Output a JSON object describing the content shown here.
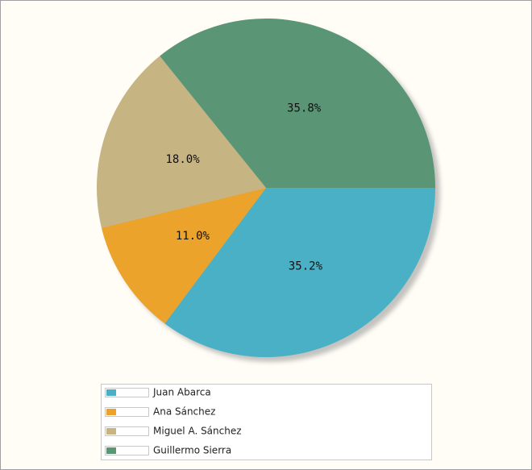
{
  "chart_data": {
    "type": "pie",
    "categories": [
      "Juan Abarca",
      "Ana Sánchez",
      "Miguel A. Sánchez",
      "Guillermo Sierra"
    ],
    "values": [
      35.2,
      11.0,
      18.0,
      35.8
    ],
    "value_labels": [
      "35.2%",
      "11.0%",
      "18.0%",
      "35.8%"
    ],
    "colors": [
      "#4ab0c5",
      "#eba32b",
      "#c6b482",
      "#5a9676"
    ]
  }
}
